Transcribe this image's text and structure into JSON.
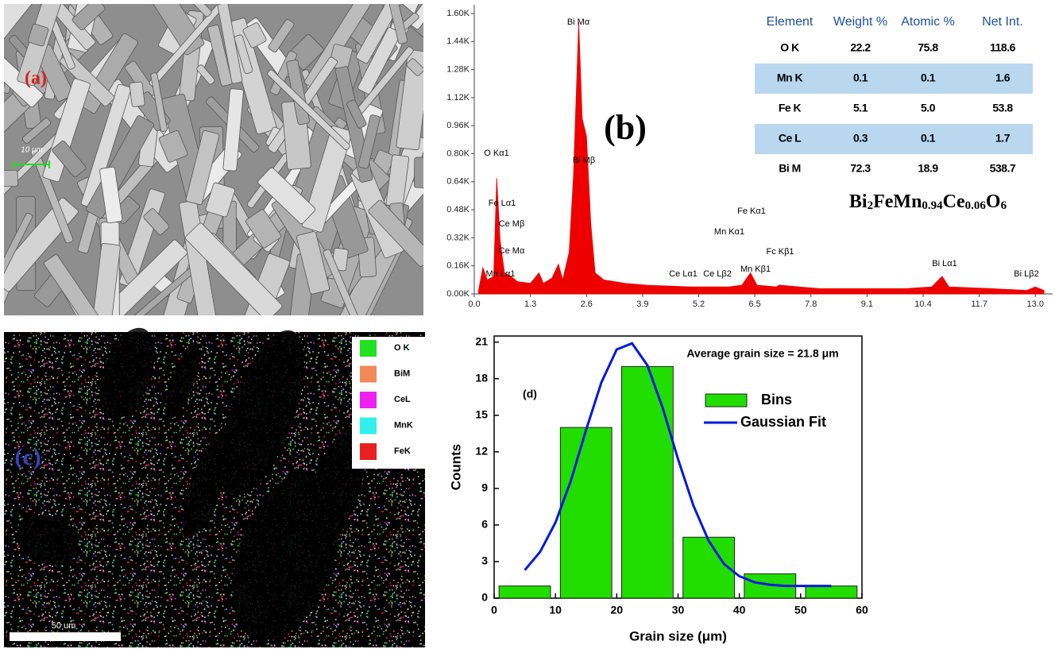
{
  "images": {
    "a": {
      "label": "(a)",
      "scale_bar": "10 μm"
    },
    "c": {
      "label": "(c)",
      "scale_bar": "50 um",
      "legend": [
        {
          "name": "O K",
          "color": "#22e022"
        },
        {
          "name": "BiM",
          "color": "#f08a5a"
        },
        {
          "name": "CeL",
          "color": "#ee22ee"
        },
        {
          "name": "MnK",
          "color": "#33eeee"
        },
        {
          "name": "FeK",
          "color": "#e82020"
        }
      ]
    }
  },
  "chart_data": [
    {
      "type": "area",
      "title": "(b)",
      "formula": [
        "Bi",
        "2",
        "FeMn",
        "0.94",
        "Ce",
        "0.06",
        "O",
        "6"
      ],
      "x": [
        0.1,
        0.2,
        0.3,
        0.45,
        0.52,
        0.6,
        0.7,
        0.85,
        1.0,
        1.3,
        1.5,
        1.6,
        1.8,
        1.95,
        2.05,
        2.2,
        2.3,
        2.42,
        2.5,
        2.6,
        2.7,
        2.8,
        3.0,
        3.5,
        4.0,
        5.0,
        5.9,
        6.2,
        6.4,
        6.55,
        7.0,
        7.06,
        8.0,
        9.0,
        10.0,
        10.6,
        10.84,
        11.0,
        12.0,
        12.8,
        13.0,
        13.2
      ],
      "values": [
        0.02,
        0.15,
        0.08,
        0.1,
        0.66,
        0.3,
        0.12,
        0.1,
        0.07,
        0.06,
        0.12,
        0.06,
        0.09,
        0.17,
        0.08,
        0.24,
        0.68,
        1.55,
        1.0,
        0.9,
        0.4,
        0.12,
        0.08,
        0.06,
        0.05,
        0.04,
        0.04,
        0.05,
        0.12,
        0.05,
        0.04,
        0.05,
        0.03,
        0.03,
        0.03,
        0.04,
        0.1,
        0.04,
        0.03,
        0.02,
        0.04,
        0.02
      ],
      "color": "#ee0000",
      "xlim": [
        0,
        13.4
      ],
      "ylim": [
        0,
        1.65
      ],
      "xticks": [
        {
          "value": 0,
          "label": "0.0"
        },
        1.3,
        2.6,
        3.9,
        5.2,
        6.5,
        7.8,
        9.1,
        10.4,
        11.7,
        {
          "value": 13,
          "label": "13.0"
        }
      ],
      "yticks": [
        {
          "value": 0,
          "label": "0.00K"
        },
        {
          "value": 0.16,
          "label": "0.16K"
        },
        {
          "value": 0.32,
          "label": "0.32K"
        },
        {
          "value": 0.48,
          "label": "0.48K"
        },
        {
          "value": 0.64,
          "label": "0.64K"
        },
        {
          "value": 0.8,
          "label": "0.80K"
        },
        {
          "value": 0.96,
          "label": "0.96K"
        },
        {
          "value": 1.12,
          "label": "1.12K"
        },
        {
          "value": 1.28,
          "label": "1.28K"
        },
        {
          "value": 1.44,
          "label": "1.44K"
        },
        {
          "value": 1.6,
          "label": "1.60K"
        }
      ],
      "annotations": [
        "Bi Mα",
        "O Kα1",
        "Bi Mβ",
        "Fe Lα1",
        "Ce Mβ",
        "Ce Mα",
        "Mn Lα1",
        "Fe Kα1",
        "Mn Kα1",
        "Fc Kβ1",
        "Ce Lα1",
        "Ce Lβ2",
        "Mn Kβ1",
        "Bi Lα1",
        "Bi Lβ2"
      ],
      "table": {
        "columns": [
          "Element",
          "Weight %",
          "Atomic %",
          "Net Int."
        ],
        "rows": [
          [
            "O K",
            "22.2",
            "75.8",
            "118.6"
          ],
          [
            "Mn K",
            "0.1",
            "0.1",
            "1.6"
          ],
          [
            "Fe K",
            "5.1",
            "5.0",
            "53.8"
          ],
          [
            "Ce L",
            "0.3",
            "0.1",
            "1.7"
          ],
          [
            "Bi M",
            "72.3",
            "18.9",
            "538.7"
          ]
        ]
      }
    },
    {
      "type": "histogram",
      "title": "(d)",
      "annotation": "Average grain size = 21.8 μm",
      "x_label": "Grain size (μm)",
      "y_label": "Counts",
      "bins": [
        0,
        10,
        20,
        30,
        40,
        50,
        60
      ],
      "series": [
        {
          "name": "Bins",
          "color": "#22dd00",
          "values": [
            1,
            14,
            19,
            5,
            2,
            1
          ]
        },
        {
          "name": "Gaussian Fit",
          "type": "line",
          "color": "#0018e0",
          "x": [
            5,
            7.5,
            10,
            12.5,
            15,
            17.5,
            20,
            22.5,
            25,
            27.5,
            30,
            32.5,
            35,
            37.5,
            40,
            42.5,
            45,
            47.5,
            50,
            52.5,
            55
          ],
          "values": [
            2.3,
            3.8,
            6.2,
            9.6,
            13.8,
            17.7,
            20.4,
            20.9,
            19.1,
            15.6,
            11.4,
            7.6,
            4.7,
            2.8,
            1.8,
            1.3,
            1.1,
            1.0,
            1.0,
            1.0,
            1.0
          ]
        }
      ],
      "xlim": [
        0,
        60
      ],
      "ylim": [
        0,
        21.5
      ],
      "xticks": [
        0,
        10,
        20,
        30,
        40,
        50,
        60
      ],
      "yticks": [
        0,
        3,
        6,
        9,
        12,
        15,
        18,
        21
      ],
      "legend": "upper right"
    }
  ]
}
